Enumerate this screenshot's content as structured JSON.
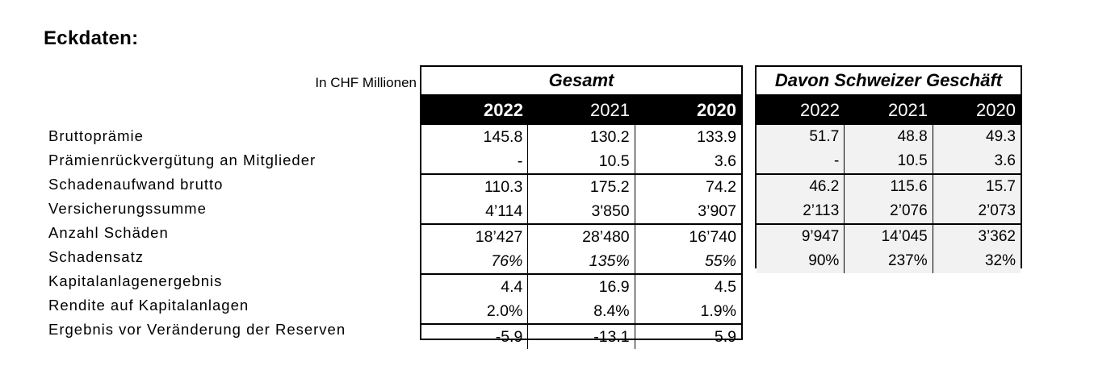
{
  "title": "Eckdaten:",
  "unit_label": "In CHF Millionen",
  "row_labels": [
    "Bruttoprämie",
    "Prämienrückvergütung an Mitglieder",
    "Schadenaufwand brutto",
    "Versicherungssumme",
    "Anzahl Schäden",
    "Schadensatz",
    "Kapitalanlagenergebnis",
    "Rendite auf Kapitalanlagen",
    "Ergebnis vor Veränderung der Reserven"
  ],
  "gesamt": {
    "header": "Gesamt",
    "years": [
      "2022",
      "2021",
      "2020"
    ],
    "rows": [
      [
        "145.8",
        "130.2",
        "133.9"
      ],
      [
        "-",
        "10.5",
        "3.6"
      ],
      [
        "110.3",
        "175.2",
        "74.2"
      ],
      [
        "4’114",
        "3'850",
        "3’907"
      ],
      [
        "18’427",
        "28’480",
        "16’740"
      ],
      [
        "76%",
        "135%",
        "55%"
      ],
      [
        "4.4",
        "16.9",
        "4.5"
      ],
      [
        "2.0%",
        "8.4%",
        "1.9%"
      ],
      [
        "-5.9",
        "-13.1",
        "5.9"
      ]
    ]
  },
  "schweiz": {
    "header": "Davon Schweizer Geschäft",
    "years": [
      "2022",
      "2021",
      "2020"
    ],
    "rows": [
      [
        "51.7",
        "48.8",
        "49.3"
      ],
      [
        "-",
        "10.5",
        "3.6"
      ],
      [
        "46.2",
        "115.6",
        "15.7"
      ],
      [
        "2’113",
        "2’076",
        "2’073"
      ],
      [
        "9’947",
        "14’045",
        "3’362"
      ],
      [
        "90%",
        "237%",
        "32%"
      ]
    ]
  }
}
